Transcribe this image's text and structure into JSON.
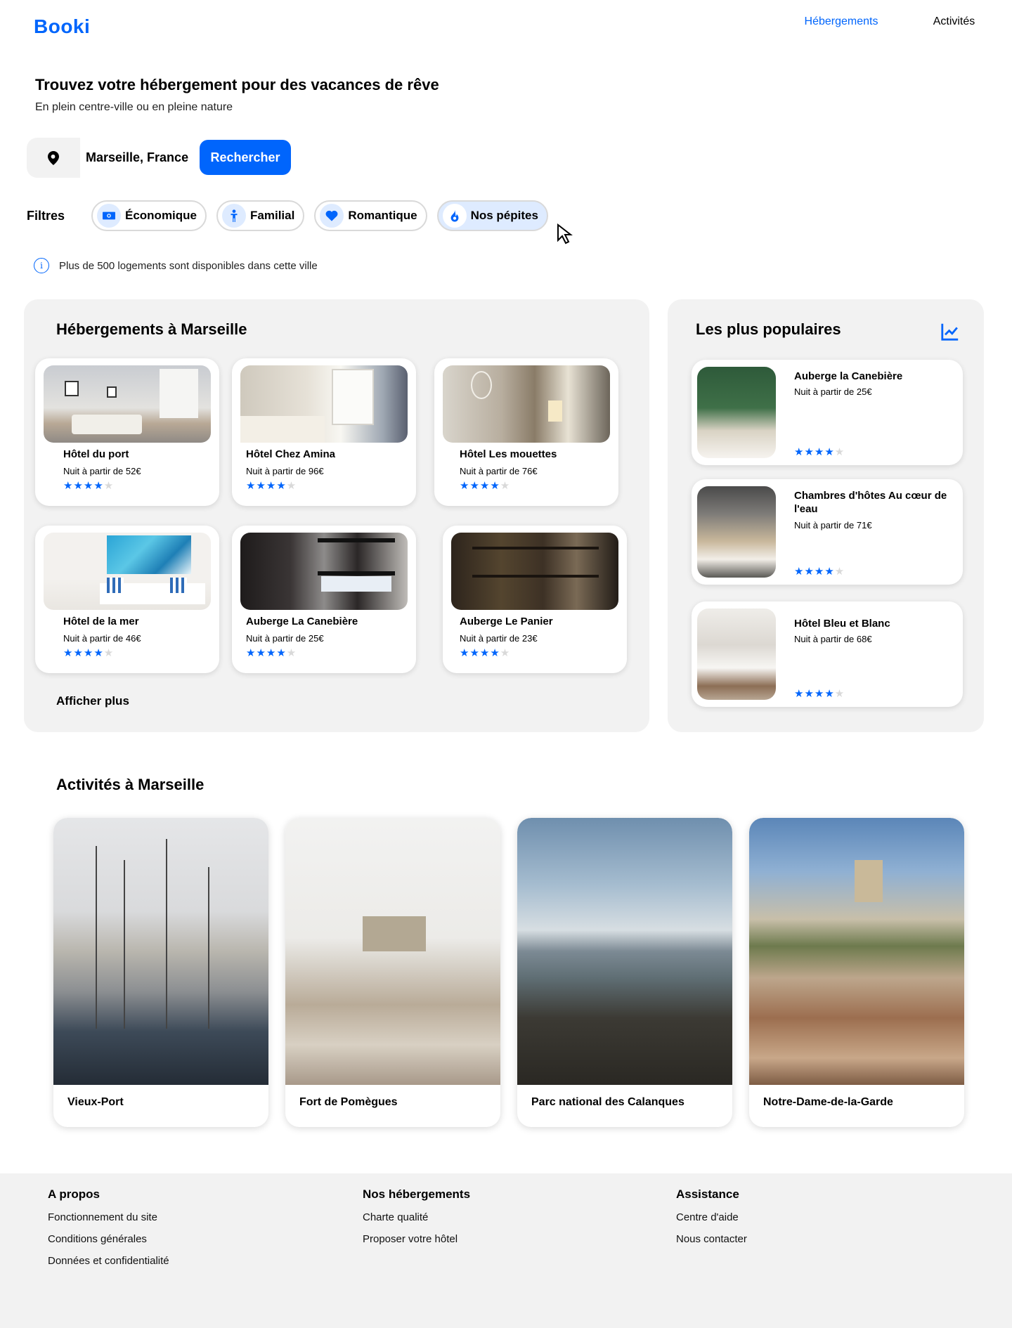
{
  "header": {
    "logo": "Booki",
    "nav": [
      "Hébergements",
      "Activités"
    ]
  },
  "hero": {
    "title": "Trouvez votre hébergement pour des vacances de rêve",
    "subtitle": "En plein centre-ville ou en pleine nature"
  },
  "search": {
    "value": "Marseille, France",
    "button": "Rechercher"
  },
  "filters": {
    "label": "Filtres",
    "items": [
      "Économique",
      "Familial",
      "Romantique",
      "Nos pépites"
    ]
  },
  "info": {
    "text": "Plus de 500 logements sont disponibles dans cette ville"
  },
  "hebergements": {
    "title": "Hébergements à Marseille",
    "show_more": "Afficher plus",
    "cards": [
      {
        "name": "Hôtel du port",
        "price": "Nuit à partir de 52€",
        "rating": 4
      },
      {
        "name": "Hôtel Chez Amina",
        "price": "Nuit à partir de 96€",
        "rating": 4
      },
      {
        "name": "Hôtel Les mouettes",
        "price": "Nuit à partir de 76€",
        "rating": 4
      },
      {
        "name": "Hôtel de la mer",
        "price": "Nuit à partir de 46€",
        "rating": 4
      },
      {
        "name": "Auberge La Canebière",
        "price": "Nuit à partir de 25€",
        "rating": 4
      },
      {
        "name": "Auberge Le Panier",
        "price": "Nuit à partir de 23€",
        "rating": 4
      }
    ]
  },
  "populaires": {
    "title": "Les plus populaires",
    "cards": [
      {
        "name": "Auberge la Canebière",
        "price": "Nuit à partir de 25€",
        "rating": 4
      },
      {
        "name": "Chambres d'hôtes Au cœur de l'eau",
        "price": "Nuit à partir de 71€",
        "rating": 4
      },
      {
        "name": "Hôtel Bleu et Blanc",
        "price": "Nuit à partir de 68€",
        "rating": 4
      }
    ]
  },
  "activites": {
    "title": "Activités à Marseille",
    "items": [
      "Vieux-Port",
      "Fort de Pomègues",
      "Parc national des Calanques",
      "Notre-Dame-de-la-Garde"
    ]
  },
  "footer": {
    "columns": [
      {
        "title": "A propos",
        "links": [
          "Fonctionnement du site",
          "Conditions générales",
          "Données et confidentialité"
        ]
      },
      {
        "title": "Nos hébergements",
        "links": [
          "Charte qualité",
          "Proposer votre hôtel"
        ]
      },
      {
        "title": "Assistance",
        "links": [
          "Centre d'aide",
          "Nous contacter"
        ]
      }
    ]
  },
  "colors": {
    "primary": "#0065FC",
    "secondary": "#DEEBFF",
    "background": "#F2F2F2"
  }
}
